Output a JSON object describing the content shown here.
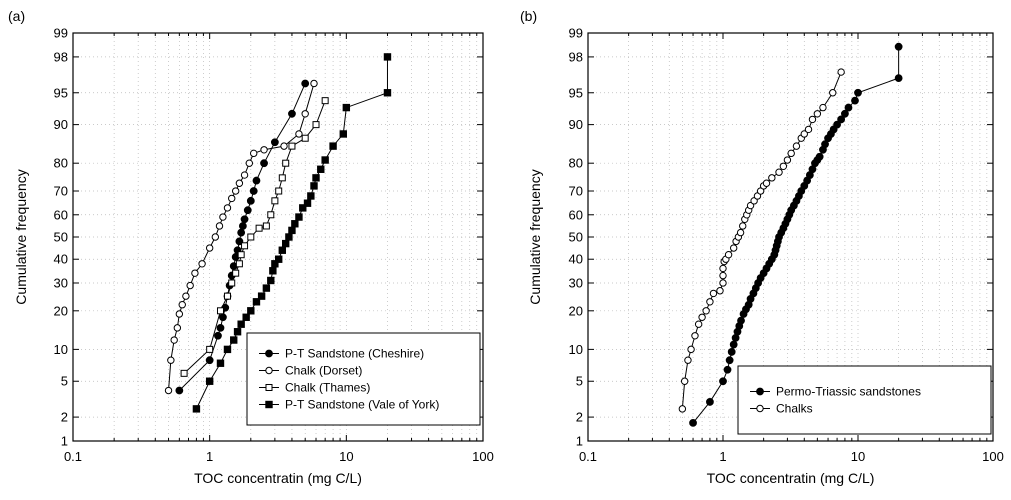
{
  "chart_data": [
    {
      "type": "scatter",
      "panel_label": "(a)",
      "xlabel": "TOC concentratin (mg C/L)",
      "ylabel": "Cumulative frequency",
      "xscale": "log",
      "yscale": "probability",
      "xlim": [
        0.1,
        100
      ],
      "ylim": [
        1,
        99
      ],
      "x_ticks": [
        "0.1",
        "1",
        "10",
        "100"
      ],
      "y_ticks": [
        "1",
        "2",
        "5",
        "10",
        "20",
        "30",
        "40",
        "50",
        "60",
        "70",
        "80",
        "90",
        "95",
        "98",
        "99"
      ],
      "grid": true,
      "legend_position": "bottom-right",
      "series": [
        {
          "name": "P-T Sandstone (Cheshire)",
          "marker": "filled-circle",
          "x": [
            0.6,
            1.0,
            1.15,
            1.2,
            1.25,
            1.3,
            1.35,
            1.4,
            1.45,
            1.5,
            1.55,
            1.6,
            1.65,
            1.7,
            1.75,
            1.8,
            1.9,
            2.0,
            2.1,
            2.2,
            2.5,
            3.0,
            4.0,
            5.0
          ],
          "y": [
            4,
            8,
            13,
            15,
            18,
            21,
            25,
            29,
            33,
            37,
            41,
            44,
            48,
            52,
            55,
            58,
            62,
            66,
            70,
            74,
            80,
            86,
            92,
            96
          ]
        },
        {
          "name": "Chalk (Dorset)",
          "marker": "open-circle",
          "x": [
            0.5,
            0.52,
            0.55,
            0.58,
            0.6,
            0.63,
            0.67,
            0.72,
            0.78,
            0.88,
            1.0,
            1.1,
            1.18,
            1.25,
            1.35,
            1.45,
            1.55,
            1.65,
            1.8,
            1.95,
            2.1,
            2.5,
            3.5,
            4.5,
            5.0,
            5.8
          ],
          "y": [
            4,
            8,
            12,
            15,
            19,
            22,
            25,
            29,
            34,
            38,
            45,
            50,
            55,
            59,
            63,
            67,
            70,
            73,
            76,
            80,
            83,
            84,
            85,
            88,
            92,
            96
          ]
        },
        {
          "name": "Chalk (Thames)",
          "marker": "open-square",
          "x": [
            0.65,
            1.0,
            1.2,
            1.35,
            1.45,
            1.55,
            1.65,
            1.7,
            1.8,
            2.0,
            2.3,
            2.6,
            2.8,
            3.0,
            3.2,
            3.4,
            3.6,
            4.0,
            5.0,
            6.0,
            7.0
          ],
          "y": [
            6,
            10,
            20,
            25,
            30,
            34,
            38,
            42,
            46,
            50,
            54,
            55,
            60,
            66,
            70,
            75,
            80,
            85,
            87,
            90,
            94
          ]
        },
        {
          "name": "P-T Sandstone (Vale of York)",
          "marker": "filled-square",
          "x": [
            0.8,
            1.0,
            1.2,
            1.35,
            1.5,
            1.6,
            1.7,
            1.85,
            2.0,
            2.2,
            2.4,
            2.6,
            2.8,
            2.9,
            3.0,
            3.2,
            3.4,
            3.6,
            3.8,
            4.0,
            4.2,
            4.5,
            4.8,
            5.2,
            5.5,
            5.8,
            6.0,
            6.5,
            7.0,
            8.0,
            9.5,
            10,
            20,
            20
          ],
          "y": [
            2.5,
            5,
            7.5,
            10,
            12,
            14,
            16,
            18,
            20,
            23,
            25,
            28,
            31,
            35,
            38,
            40,
            44,
            47,
            50,
            53,
            56,
            59,
            63,
            65,
            68,
            72,
            75,
            78,
            81,
            85,
            88,
            93,
            95,
            98
          ]
        }
      ]
    },
    {
      "type": "scatter",
      "panel_label": "(b)",
      "xlabel": "TOC concentratin (mg C/L)",
      "ylabel": "Cumulative frequency",
      "xscale": "log",
      "yscale": "probability",
      "xlim": [
        0.1,
        100
      ],
      "ylim": [
        1,
        99
      ],
      "x_ticks": [
        "0.1",
        "1",
        "10",
        "100"
      ],
      "y_ticks": [
        "1",
        "2",
        "5",
        "10",
        "20",
        "30",
        "40",
        "50",
        "60",
        "70",
        "80",
        "90",
        "95",
        "98",
        "99"
      ],
      "grid": true,
      "legend_position": "bottom-right",
      "series": [
        {
          "name": "Permo-Triassic sandstones",
          "marker": "filled-circle",
          "x": [
            0.6,
            0.8,
            1.0,
            1.08,
            1.12,
            1.16,
            1.2,
            1.24,
            1.28,
            1.32,
            1.36,
            1.42,
            1.48,
            1.55,
            1.6,
            1.68,
            1.75,
            1.82,
            1.9,
            2.0,
            2.1,
            2.2,
            2.3,
            2.4,
            2.45,
            2.5,
            2.55,
            2.6,
            2.7,
            2.8,
            2.9,
            3.0,
            3.1,
            3.2,
            3.35,
            3.5,
            3.65,
            3.8,
            4.0,
            4.2,
            4.4,
            4.6,
            4.8,
            5.0,
            5.2,
            5.5,
            5.7,
            6.0,
            6.3,
            6.6,
            7.0,
            7.5,
            8.0,
            8.5,
            9.5,
            10,
            20,
            20
          ],
          "y": [
            1.7,
            3,
            5,
            6.5,
            8,
            9.5,
            11,
            12.5,
            14,
            15.5,
            17,
            19,
            20.5,
            22,
            24,
            26,
            28,
            30,
            32,
            34,
            36,
            38,
            40,
            42,
            44,
            46,
            48,
            50,
            52,
            54,
            56,
            58,
            60,
            62,
            64,
            66,
            68,
            70,
            72,
            74,
            76,
            78,
            80,
            81,
            82,
            84,
            85.5,
            87,
            88,
            89,
            90,
            91,
            92,
            93,
            94,
            95,
            96.5,
            98.5
          ]
        },
        {
          "name": "Chalks",
          "marker": "open-circle",
          "x": [
            0.5,
            0.52,
            0.55,
            0.58,
            0.62,
            0.66,
            0.7,
            0.75,
            0.8,
            0.85,
            0.95,
            1.0,
            1.0,
            1.0,
            1.02,
            1.05,
            1.1,
            1.2,
            1.25,
            1.3,
            1.35,
            1.4,
            1.45,
            1.5,
            1.55,
            1.6,
            1.7,
            1.8,
            1.9,
            2.0,
            2.1,
            2.3,
            2.6,
            2.8,
            3.0,
            3.2,
            3.5,
            3.8,
            4.0,
            4.3,
            4.6,
            5.0,
            5.5,
            6.5,
            7.5
          ],
          "y": [
            2.5,
            5,
            8,
            10,
            13,
            16,
            18,
            20,
            23,
            26,
            27,
            30,
            33,
            36,
            39,
            40,
            42,
            45,
            48,
            50,
            52,
            55,
            58,
            60,
            62,
            64,
            66,
            68,
            70,
            72,
            73,
            75,
            77,
            79,
            81,
            83,
            85,
            87,
            88,
            89,
            91,
            92,
            93,
            95,
            97
          ]
        }
      ]
    }
  ]
}
